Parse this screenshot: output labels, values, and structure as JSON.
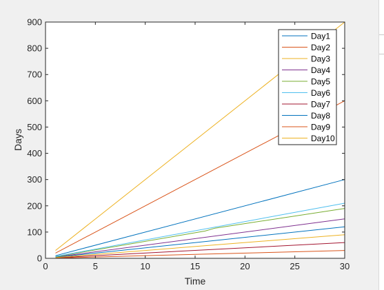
{
  "chart_data": {
    "type": "line",
    "title": "",
    "xlabel": "Time",
    "ylabel": "Days",
    "xlim": [
      0,
      30
    ],
    "ylim": [
      0,
      900
    ],
    "xticks": [
      0,
      5,
      10,
      15,
      20,
      25,
      30
    ],
    "yticks": [
      0,
      100,
      200,
      300,
      400,
      500,
      600,
      700,
      800,
      900
    ],
    "grid": false,
    "legend_location": "top-right",
    "x": [
      1,
      30
    ],
    "series": [
      {
        "name": "Day1",
        "color": "#0072BD",
        "x": [
          1,
          30
        ],
        "y": [
          10,
          300
        ]
      },
      {
        "name": "Day2",
        "color": "#D95319",
        "x": [
          1,
          30
        ],
        "y": [
          20,
          600
        ]
      },
      {
        "name": "Day3",
        "color": "#EDB120",
        "x": [
          1,
          30
        ],
        "y": [
          30,
          900
        ]
      },
      {
        "name": "Day4",
        "color": "#7E2F8E",
        "x": [
          1,
          30
        ],
        "y": [
          5,
          150
        ]
      },
      {
        "name": "Day5",
        "color": "#77AC30",
        "x": [
          1,
          16,
          17,
          30
        ],
        "y": [
          6,
          104,
          115,
          190
        ]
      },
      {
        "name": "Day6",
        "color": "#4DBEEE",
        "x": [
          1,
          30
        ],
        "y": [
          7,
          210
        ]
      },
      {
        "name": "Day7",
        "color": "#A2142F",
        "x": [
          1,
          30
        ],
        "y": [
          2,
          60
        ]
      },
      {
        "name": "Day8",
        "color": "#0072BD",
        "x": [
          1,
          30
        ],
        "y": [
          4,
          120
        ]
      },
      {
        "name": "Day9",
        "color": "#D95319",
        "x": [
          1,
          30
        ],
        "y": [
          1,
          30
        ]
      },
      {
        "name": "Day10",
        "color": "#EDB120",
        "x": [
          1,
          30
        ],
        "y": [
          3,
          90
        ]
      }
    ]
  }
}
